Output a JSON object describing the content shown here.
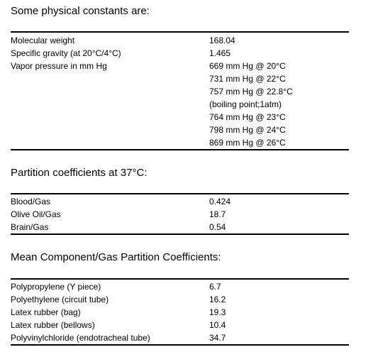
{
  "physical": {
    "heading": "Some physical constants are:",
    "rows": [
      {
        "label": "Molecular weight",
        "value": "168.04"
      },
      {
        "label": "Specific gravity (at 20°C/4°C)",
        "value": "1.465"
      },
      {
        "label": "Vapor pressure in mm Hg",
        "value": "669 mm Hg @ 20°C"
      },
      {
        "label": "",
        "value": "731 mm Hg @ 22°C"
      },
      {
        "label": "",
        "value": "757 mm Hg @ 22.8°C"
      },
      {
        "label": "",
        "value": "(boiling point;1atm)"
      },
      {
        "label": "",
        "value": "764 mm Hg @ 23°C"
      },
      {
        "label": "",
        "value": "798 mm Hg @ 24°C"
      },
      {
        "label": "",
        "value": "869 mm Hg @ 26°C"
      }
    ]
  },
  "partition": {
    "heading": "Partition coefficients at 37°C:",
    "rows": [
      {
        "label": "Blood/Gas",
        "value": "0.424"
      },
      {
        "label": "Olive Oil/Gas",
        "value": "18.7"
      },
      {
        "label": "Brain/Gas",
        "value": "0.54"
      }
    ]
  },
  "mean": {
    "heading": "Mean Component/Gas Partition Coefficients:",
    "rows": [
      {
        "label": "Polypropylene (Y piece)",
        "value": "6.7"
      },
      {
        "label": "Polyethylene (circuit tube)",
        "value": "16.2"
      },
      {
        "label": "Latex rubber (bag)",
        "value": "19.3"
      },
      {
        "label": "Latex rubber (bellows)",
        "value": "10.4"
      },
      {
        "label": "Polyvinylchloride (endotracheal tube)",
        "value": "34.7"
      }
    ]
  }
}
